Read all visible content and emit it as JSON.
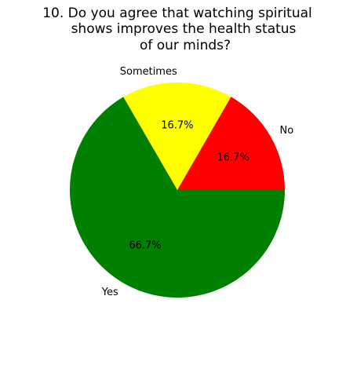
{
  "chart_data": {
    "type": "pie",
    "title": [
      "10. Do you agree that watching spiritual",
      "shows improves the health status",
      "of our minds?"
    ],
    "categories": [
      "No",
      "Sometimes",
      "Yes"
    ],
    "values": [
      16.7,
      16.7,
      66.7
    ],
    "value_labels": [
      "16.7%",
      "16.7%",
      "66.7%"
    ],
    "colors": [
      "#ff0000",
      "#ffff00",
      "#008000"
    ],
    "start_angle_deg": 0,
    "direction": "counterclockwise",
    "legend": "none"
  }
}
